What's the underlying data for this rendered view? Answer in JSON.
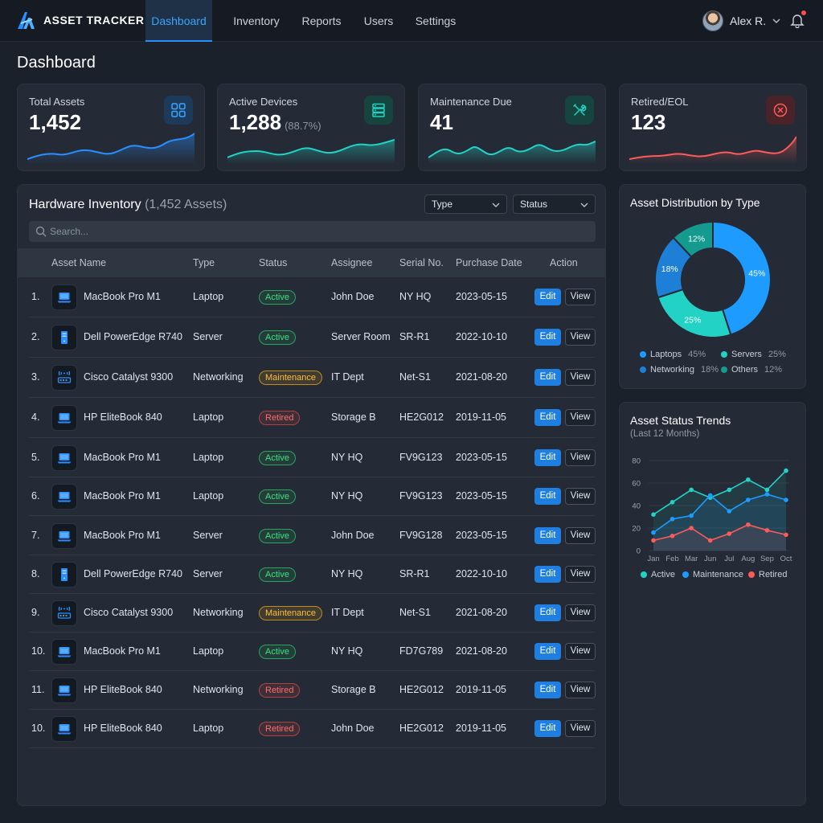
{
  "app": {
    "title": "ASSET TRACKER"
  },
  "nav": {
    "items": [
      {
        "label": "Dashboard",
        "active": true
      },
      {
        "label": "Inventory"
      },
      {
        "label": "Reports"
      },
      {
        "label": "Users"
      },
      {
        "label": "Settings"
      }
    ],
    "user_name": "Alex R."
  },
  "page": {
    "title": "Dashboard"
  },
  "kpis": [
    {
      "label": "Total Assets",
      "value": "1,452",
      "sub": "",
      "icon": "grid-icon",
      "color": "#2a8eff"
    },
    {
      "label": "Active Devices",
      "value": "1,288",
      "sub": "(88.7%)",
      "icon": "server-icon",
      "color": "#22d3c5"
    },
    {
      "label": "Maintenance Due",
      "value": "41",
      "sub": "",
      "icon": "wrench-icon",
      "color": "#22d3c5"
    },
    {
      "label": "Retired/EOL",
      "value": "123",
      "sub": "",
      "icon": "x-circle-icon",
      "color": "#ff5a5a"
    }
  ],
  "inventory": {
    "title": "Hardware Inventory",
    "count_label": "(1,452 Assets)",
    "filter_type": "Type",
    "filter_status": "Status",
    "search_placeholder": "Search...",
    "columns": [
      "Asset Name",
      "Type",
      "Status",
      "Assignee",
      "Serial No.",
      "Purchase Date",
      "Action"
    ],
    "edit_label": "Edit",
    "view_label": "View",
    "rows": [
      {
        "num": "1.",
        "name": "MacBook Pro M1",
        "type": "Laptop",
        "status": "Active",
        "assignee": "John Doe",
        "serial": "NY HQ",
        "date": "2023-05-15",
        "icon": "laptop-icon"
      },
      {
        "num": "2.",
        "name": "Dell PowerEdge R740",
        "type": "Server",
        "status": "Active",
        "assignee": "Server Room",
        "serial": "SR-R1",
        "date": "2022-10-10",
        "icon": "server-icon"
      },
      {
        "num": "3.",
        "name": "Cisco Catalyst 9300",
        "type": "Networking",
        "status": "Maintenance",
        "assignee": "IT Dept",
        "serial": "Net-S1",
        "date": "2021-08-20",
        "icon": "router-icon"
      },
      {
        "num": "4.",
        "name": "HP EliteBook 840",
        "type": "Laptop",
        "status": "Retired",
        "assignee": "Storage B",
        "serial": "HE2G012",
        "date": "2019-11-05",
        "icon": "laptop-icon"
      },
      {
        "num": "5.",
        "name": "MacBook Pro M1",
        "type": "Laptop",
        "status": "Active",
        "assignee": "NY HQ",
        "serial": "FV9G123",
        "date": "2023-05-15",
        "icon": "laptop-icon"
      },
      {
        "num": "6.",
        "name": "MacBook Pro M1",
        "type": "Laptop",
        "status": "Active",
        "assignee": "NY HQ",
        "serial": "FV9G123",
        "date": "2023-05-15",
        "icon": "laptop-icon"
      },
      {
        "num": "7.",
        "name": "MacBook Pro M1",
        "type": "Server",
        "status": "Active",
        "assignee": "John Doe",
        "serial": "FV9G128",
        "date": "2023-05-15",
        "icon": "laptop-icon"
      },
      {
        "num": "8.",
        "name": "Dell PowerEdge R740",
        "type": "Server",
        "status": "Active",
        "assignee": "NY HQ",
        "serial": "SR-R1",
        "date": "2022-10-10",
        "icon": "server-icon"
      },
      {
        "num": "9.",
        "name": "Cisco Catalyst 9300",
        "type": "Networking",
        "status": "Maintenance",
        "assignee": "IT Dept",
        "serial": "Net-S1",
        "date": "2021-08-20",
        "icon": "router-icon"
      },
      {
        "num": "10.",
        "name": "MacBook Pro M1",
        "type": "Laptop",
        "status": "Active",
        "assignee": "NY HQ",
        "serial": "FD7G789",
        "date": "2021-08-20",
        "icon": "laptop-icon"
      },
      {
        "num": "11.",
        "name": "HP EliteBook 840",
        "type": "Networking",
        "status": "Retired",
        "assignee": "Storage B",
        "serial": "HE2G012",
        "date": "2019-11-05",
        "icon": "laptop-icon"
      },
      {
        "num": "10.",
        "name": "HP EliteBook 840",
        "type": "Laptop",
        "status": "Retired",
        "assignee": "John Doe",
        "serial": "HE2G012",
        "date": "2019-11-05",
        "icon": "laptop-icon"
      }
    ]
  },
  "distribution": {
    "title": "Asset Distribution by Type",
    "slices": [
      {
        "label": "Laptops",
        "value": 45,
        "pct": "45%",
        "color": "#1e9bff"
      },
      {
        "label": "Servers",
        "value": 25,
        "pct": "25%",
        "color": "#22d3c5"
      },
      {
        "label": "Networking",
        "value": 18,
        "pct": "18%",
        "color": "#1d7fd6"
      },
      {
        "label": "Others",
        "value": 12,
        "pct": "12%",
        "color": "#159a8f"
      }
    ]
  },
  "trends": {
    "title": "Asset Status Trends",
    "subtitle": "(Last 12 Months)",
    "legend": [
      "Active",
      "Maintenance",
      "Retired"
    ]
  },
  "chart_data": [
    {
      "type": "pie",
      "title": "Asset Distribution by Type",
      "categories": [
        "Laptops",
        "Servers",
        "Networking",
        "Others"
      ],
      "values": [
        45,
        25,
        18,
        12
      ]
    },
    {
      "type": "line",
      "title": "Asset Status Trends",
      "subtitle": "(Last 12 Months)",
      "x": [
        "Jan",
        "Feb",
        "Mar",
        "Jun",
        "Jul",
        "Aug",
        "Sep",
        "Oct"
      ],
      "y_ticks": [
        0,
        20,
        40,
        60,
        80
      ],
      "ylim": [
        0,
        80
      ],
      "series": [
        {
          "name": "Active",
          "color": "#22d3c5",
          "values": [
            32,
            43,
            54,
            47,
            54,
            63,
            54,
            71
          ]
        },
        {
          "name": "Maintenance",
          "color": "#1e9bff",
          "values": [
            16,
            28,
            31,
            49,
            35,
            45,
            50,
            45
          ]
        },
        {
          "name": "Retired",
          "color": "#ff5a5a",
          "values": [
            9,
            13,
            20,
            9,
            15,
            23,
            18,
            14
          ]
        }
      ]
    }
  ]
}
